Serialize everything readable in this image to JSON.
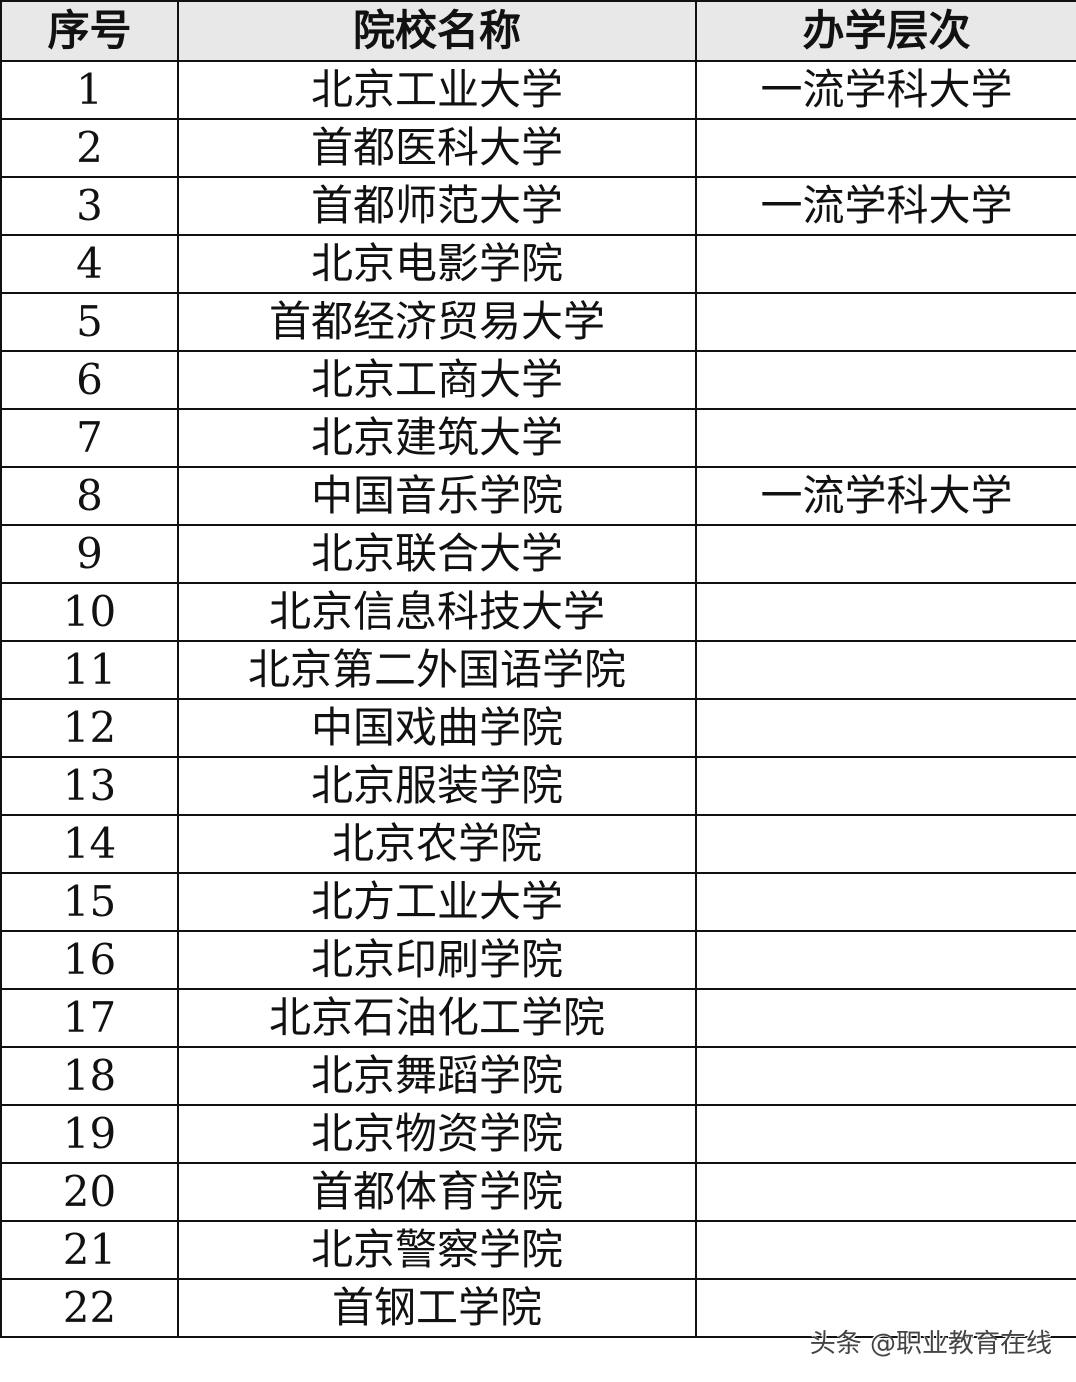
{
  "headers": [
    "序号",
    "院校名称",
    "办学层次"
  ],
  "rows": [
    [
      "1",
      "北京工业大学",
      "一流学科大学"
    ],
    [
      "2",
      "首都医科大学",
      ""
    ],
    [
      "3",
      "首都师范大学",
      "一流学科大学"
    ],
    [
      "4",
      "北京电影学院",
      ""
    ],
    [
      "5",
      "首都经济贸易大学",
      ""
    ],
    [
      "6",
      "北京工商大学",
      ""
    ],
    [
      "7",
      "北京建筑大学",
      ""
    ],
    [
      "8",
      "中国音乐学院",
      "一流学科大学"
    ],
    [
      "9",
      "北京联合大学",
      ""
    ],
    [
      "10",
      "北京信息科技大学",
      ""
    ],
    [
      "11",
      "北京第二外国语学院",
      ""
    ],
    [
      "12",
      "中国戏曲学院",
      ""
    ],
    [
      "13",
      "北京服装学院",
      ""
    ],
    [
      "14",
      "北京农学院",
      ""
    ],
    [
      "15",
      "北方工业大学",
      ""
    ],
    [
      "16",
      "北京印刷学院",
      ""
    ],
    [
      "17",
      "北京石油化工学院",
      ""
    ],
    [
      "18",
      "北京舞蹈学院",
      ""
    ],
    [
      "19",
      "北京物资学院",
      ""
    ],
    [
      "20",
      "首都体育学院",
      ""
    ],
    [
      "21",
      "北京警察学院",
      ""
    ],
    [
      "22",
      "首钢工学院",
      ""
    ]
  ],
  "watermark": "头条 @职业教育在线"
}
